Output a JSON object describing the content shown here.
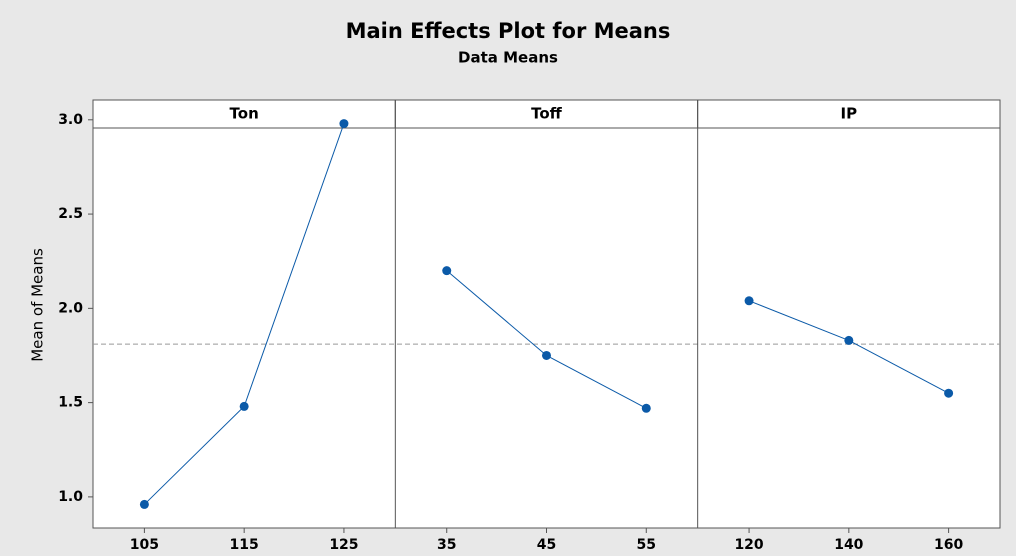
{
  "header": {
    "title": "Main Effects Plot for Means",
    "subtitle": "Data Means"
  },
  "chart_data": [
    {
      "type": "line",
      "title": "Ton",
      "categories": [
        "105",
        "115",
        "125"
      ],
      "values": [
        0.96,
        1.48,
        2.98
      ],
      "color": "#0b5aa8",
      "y_label": "Mean of Means",
      "ylim": [
        0.835,
        3.105
      ],
      "yticks": [
        {
          "value": 1,
          "label": "1.0"
        },
        1.5,
        {
          "value": 2,
          "label": "2.0"
        },
        2.5,
        {
          "value": 3,
          "label": "3.0"
        }
      ],
      "reference_line": 1.81
    },
    {
      "type": "line",
      "title": "Toff",
      "categories": [
        "35",
        "45",
        "55"
      ],
      "values": [
        2.2,
        1.75,
        1.47
      ],
      "color": "#0b5aa8"
    },
    {
      "type": "line",
      "title": "IP",
      "categories": [
        "120",
        "140",
        "160"
      ],
      "values": [
        2.04,
        1.83,
        1.55
      ],
      "color": "#0b5aa8"
    }
  ]
}
